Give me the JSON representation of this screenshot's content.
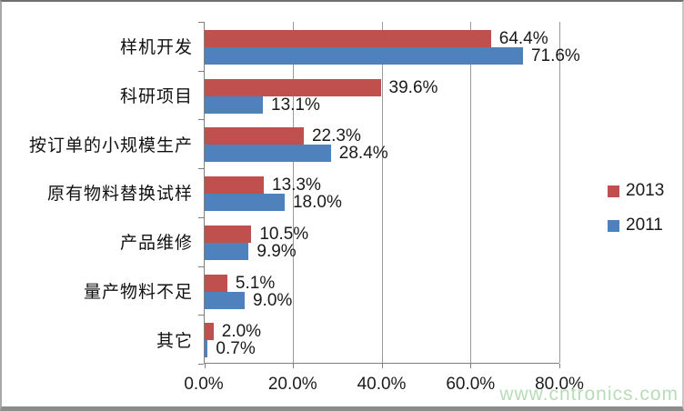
{
  "chart_data": {
    "type": "bar",
    "orientation": "horizontal",
    "title": "",
    "xlabel": "",
    "ylabel": "",
    "categories": [
      "样机开发",
      "科研项目",
      "按订单的小规模生产",
      "原有物料替换试样",
      "产品维修",
      "量产物料不足",
      "其它"
    ],
    "series": [
      {
        "name": "2013",
        "color": "#c0504d",
        "values": [
          64.4,
          39.6,
          22.3,
          13.3,
          10.5,
          5.1,
          2.0
        ],
        "labels": [
          "64.4%",
          "39.6%",
          "22.3%",
          "13.3%",
          "10.5%",
          "5.1%",
          "2.0%"
        ]
      },
      {
        "name": "2011",
        "color": "#4f81bd",
        "values": [
          71.6,
          13.1,
          28.4,
          18.0,
          9.9,
          9.0,
          0.7
        ],
        "labels": [
          "71.6%",
          "13.1%",
          "28.4%",
          "18.0%",
          "9.9%",
          "9.0%",
          "0.7%"
        ]
      }
    ],
    "x_ticks": [
      "0.0%",
      "20.0%",
      "40.0%",
      "60.0%",
      "80.0%"
    ],
    "xlim": [
      0,
      80
    ],
    "grid": true,
    "legend_position": "right",
    "data_labels": true
  },
  "watermark": {
    "text": "www.cntronics.com",
    "color": "#b5dbb5"
  }
}
